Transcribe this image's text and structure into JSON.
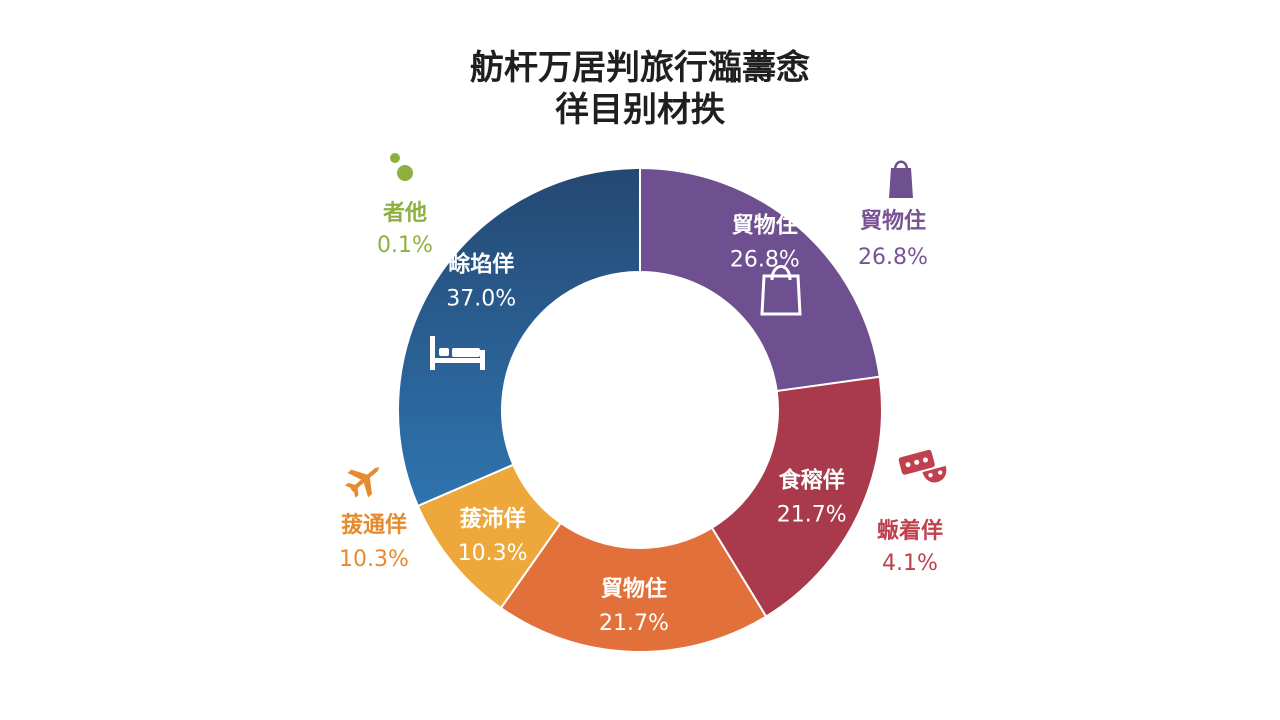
{
  "chart_data": {
    "type": "pie",
    "title": "舫杆万居判旅行瀶薵悆",
    "subtitle": "徉目别材抶",
    "categories": [
      "貿物住",
      "食穃佯",
      "貿物住",
      "菝沛佯",
      "畭埳佯"
    ],
    "values": [
      26.8,
      21.7,
      21.7,
      10.3,
      37.0
    ],
    "value_labels": [
      "26.8%",
      "21.7%",
      "21.7%",
      "10.3%",
      "37.0%"
    ],
    "colors": [
      "#6e5090",
      "#a83a4c",
      "#e2703a",
      "#eda73a",
      "#2f74b0"
    ],
    "gradient_top": "#244872",
    "icons": [
      "shopping-bag-icon",
      "",
      "",
      "",
      "bed-icon"
    ],
    "external_labels": [
      {
        "name": "貿物住",
        "value": "26.8%",
        "color": "#7a5396",
        "icon": "shopping-bag-icon"
      },
      {
        "name": "蝂着佯",
        "value": "4.1%",
        "color": "#c0404e",
        "icon": "theater-tickets-icon"
      },
      {
        "name": "菝通佯",
        "value": "10.3%",
        "color": "#e58a2e",
        "icon": "airplane-icon"
      },
      {
        "name": "者他",
        "value": "0.1%",
        "color": "#8db040",
        "icon": "dots-icon"
      }
    ]
  }
}
